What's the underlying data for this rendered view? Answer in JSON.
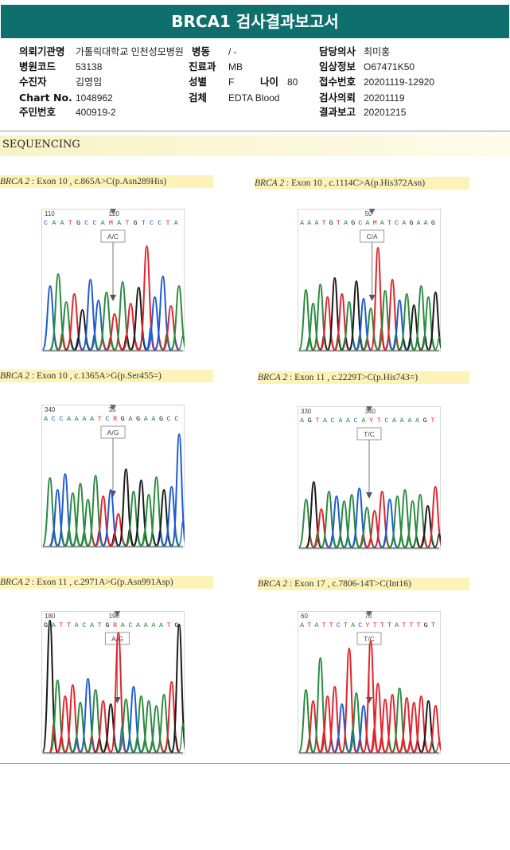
{
  "report_title": "BRCA1 검사결과보고서",
  "info": {
    "hospital": {
      "label": "의뢰기관명",
      "value": "가톨릭대학교 인천성모병원"
    },
    "ward": {
      "label": "병동",
      "value": "/ -"
    },
    "doctor": {
      "label": "담당의사",
      "value": "최미홍"
    },
    "hospital_code": {
      "label": "병원코드",
      "value": "53138"
    },
    "department": {
      "label": "진료과",
      "value": "MB"
    },
    "clinical_info": {
      "label": "임상정보",
      "value": "O67471K50"
    },
    "patient": {
      "label": "수진자",
      "value": "김영임"
    },
    "sex": {
      "label": "성별",
      "value": "F"
    },
    "age": {
      "label": "나이",
      "value": "80"
    },
    "receipt_no": {
      "label": "접수번호",
      "value": "20201119-12920"
    },
    "chart_no": {
      "label": "Chart No.",
      "value": "1048962"
    },
    "specimen": {
      "label": "검체",
      "value": "EDTA Blood"
    },
    "test_request": {
      "label": "검사의뢰",
      "value": "20201119"
    },
    "resident_no": {
      "label": "주민번호",
      "value": "400919-2"
    },
    "result_report": {
      "label": "결과보고",
      "value": "20201215"
    }
  },
  "section_title": "SEQUENCING",
  "panels": [
    {
      "gene": "BRCA 2",
      "detail": " : Exon 10 , c.865A>C(p.Asn289His)",
      "pos_left": "110",
      "pos_right": "120",
      "seq": "C A A T G C C A M A T G T C C T A",
      "call": "A/C",
      "colors": {
        "a": "#2a8a3e",
        "c": "#1e5bd0",
        "g": "#1a1a1a",
        "t": "#e0242c"
      }
    },
    {
      "gene": "BRCA 2",
      "detail": " : Exon 10 , c.1114C>A(p.His372Asn)",
      "pos_left": "",
      "pos_right": "50",
      "seq": "A A A T G T A G C A M A T C A G A A G",
      "call": "C/A",
      "colors": {
        "a": "#2a8a3e",
        "c": "#1e5bd0",
        "g": "#1a1a1a",
        "t": "#e0242c"
      }
    },
    {
      "gene": "BRCA 2",
      "detail": " : Exon 10 , c.1365A>G(p.Ser455=)",
      "pos_left": "340",
      "pos_right": "35",
      "seq": "A C C A A A A T C R G A G A A G C C",
      "call": "A/G",
      "colors": {
        "a": "#2a8a3e",
        "c": "#1e5bd0",
        "g": "#1a1a1a",
        "t": "#e0242c"
      }
    },
    {
      "gene": "BRCA 2",
      "detail": " : Exon 11 , c.2229T>C(p.His743=)",
      "pos_left": "330",
      "pos_right": "340",
      "seq": "A G T A C A A C A Y T C A A A A G T",
      "call": "T/C",
      "colors": {
        "a": "#2a8a3e",
        "c": "#1e5bd0",
        "g": "#1a1a1a",
        "t": "#e0242c"
      }
    },
    {
      "gene": "BRCA 2",
      "detail": " : Exon 11 , c.2971A>G(p.Asn991Asp)",
      "pos_left": "180",
      "pos_right": "190",
      "seq": "G A T T A C A T G R A C A A A A T G",
      "call": "A/G",
      "colors": {
        "a": "#2a8a3e",
        "c": "#1e5bd0",
        "g": "#1a1a1a",
        "t": "#e0242c"
      }
    },
    {
      "gene": "BRCA 2",
      "detail": " : Exon 17 , c.7806-14T>C(Int16)",
      "pos_left": "60",
      "pos_right": "70",
      "seq": "A T A T T C T A C Y T T T A T T T G T",
      "call": "T/C",
      "colors": {
        "a": "#2a8a3e",
        "c": "#1e5bd0",
        "g": "#1a1a1a",
        "t": "#e0242c"
      }
    }
  ]
}
